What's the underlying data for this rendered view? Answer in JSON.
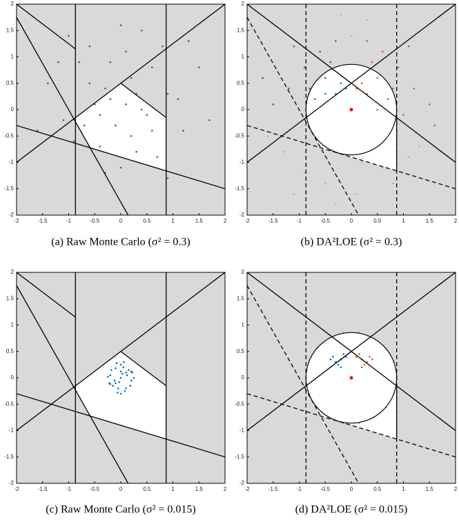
{
  "chart_data": [
    {
      "type": "scatter",
      "caption": "(a) Raw Monte Carlo (σ² = 0.3)",
      "xlim": [
        -2,
        2
      ],
      "ylim": [
        -2,
        2
      ],
      "xticks": [
        -2,
        -1.5,
        -1,
        -0.5,
        0,
        0.5,
        1,
        1.5,
        2
      ],
      "yticks": [
        -2,
        -1.5,
        -1,
        -0.5,
        0,
        0.5,
        1,
        1.5,
        2
      ],
      "region": {
        "x": [
          0,
          0.87,
          0.87,
          -0.59,
          -0.87,
          -0.87
        ],
        "y": [
          0.5,
          -0.15,
          -1.16,
          -0.72,
          -0.23,
          -0.15
        ]
      },
      "lines": [
        {
          "style": "solid",
          "x": [
            -0.87,
            -0.87
          ],
          "y": [
            -2,
            2
          ]
        },
        {
          "style": "solid",
          "x": [
            0.87,
            0.87
          ],
          "y": [
            -2,
            2
          ]
        },
        {
          "style": "solid",
          "x": [
            -2,
            2
          ],
          "y": [
            -1,
            2
          ]
        },
        {
          "style": "solid",
          "x": [
            -2,
            -0.87
          ],
          "y": [
            2,
            1.15
          ]
        },
        {
          "style": "solid",
          "x": [
            0,
            0.87
          ],
          "y": [
            0.5,
            -0.15
          ]
        },
        {
          "style": "solid",
          "x": [
            -2,
            0.14
          ],
          "y": [
            1.75,
            -2
          ]
        },
        {
          "style": "solid",
          "x": [
            -2,
            2
          ],
          "y": [
            -0.3,
            -1.5
          ]
        }
      ],
      "series": [
        {
          "color": "#0072bd",
          "x": [
            -0.8,
            -0.3,
            0.2,
            0.6,
            -1.1,
            0.1,
            -0.4,
            0.9,
            -0.6,
            0.4,
            1.2,
            -1.4,
            0.0,
            0.7,
            -0.2,
            0.3,
            -0.9,
            1.5,
            -0.5,
            0.5,
            0.1,
            -1.0,
            0.8,
            -0.1,
            0.3,
            -0.7,
            1.1,
            -1.6,
            0.2,
            -0.3,
            0.6,
            -0.2,
            1.3,
            -1.2,
            0.4,
            -0.6,
            0.0,
            0.9,
            -0.4,
            1.7
          ],
          "y": [
            0.9,
            0.4,
            -0.5,
            0.8,
            -0.2,
            0.1,
            -0.7,
            0.3,
            1.2,
            1.5,
            -0.4,
            0.5,
            -1.1,
            -0.9,
            0.9,
            0.3,
            -0.6,
            0.8,
            0.1,
            -0.1,
            1.1,
            1.4,
            1.2,
            -0.3,
            -0.8,
            -0.3,
            0.2,
            -0.4,
            0.6,
            -1.2,
            -0.4,
            0.2,
            1.3,
            0.9,
            0.0,
            0.5,
            1.6,
            -1.3,
            -0.1,
            -0.2
          ]
        }
      ]
    },
    {
      "type": "scatter",
      "caption": "(b) DA²LOE   (σ² = 0.3)",
      "xlim": [
        -2,
        2
      ],
      "ylim": [
        -2,
        2
      ],
      "xticks": [
        -2,
        -1.5,
        -1,
        -0.5,
        0,
        0.5,
        1,
        1.5,
        2
      ],
      "yticks": [
        -2,
        -1.5,
        -1,
        -0.5,
        0,
        0.5,
        1,
        1.5,
        2
      ],
      "region": {
        "x": [
          0,
          0.87,
          0.87,
          -0.59,
          -0.87,
          -0.87
        ],
        "y": [
          0.5,
          -0.15,
          -1.16,
          -0.72,
          -0.23,
          -0.15
        ]
      },
      "circle": {
        "cx": 0,
        "cy": 0,
        "r": 0.87
      },
      "lines": [
        {
          "style": "dashed",
          "x": [
            -0.87,
            -0.87
          ],
          "y": [
            -2,
            2
          ]
        },
        {
          "style": "dashed",
          "x": [
            0.87,
            0.87
          ],
          "y": [
            -2,
            2
          ]
        },
        {
          "style": "solid",
          "x": [
            0.87,
            0.87
          ],
          "y": [
            -0.15,
            -1.16
          ]
        },
        {
          "style": "solid",
          "x": [
            -2,
            2
          ],
          "y": [
            -1,
            2
          ]
        },
        {
          "style": "solid",
          "x": [
            -2,
            2
          ],
          "y": [
            2,
            -1
          ]
        },
        {
          "style": "dashed",
          "x": [
            -2,
            0.14
          ],
          "y": [
            1.75,
            -2
          ]
        },
        {
          "style": "dashed",
          "x": [
            -2,
            2
          ],
          "y": [
            -0.3,
            -1.5
          ]
        }
      ],
      "series": [
        {
          "color": "#0072bd",
          "x": [
            -0.3,
            -0.5,
            -0.7,
            -0.2,
            -0.9,
            -1.2,
            -0.6,
            -0.4,
            -1.5,
            -0.8,
            -0.1,
            -1.1,
            -0.5,
            -0.3,
            -1.7
          ],
          "y": [
            0.3,
            0.6,
            0.2,
            0.5,
            0.8,
            0.4,
            1.1,
            0.9,
            0.1,
            0.4,
            0.4,
            1.2,
            0.3,
            1.3,
            0.6
          ]
        },
        {
          "color": "#d95319",
          "x": [
            0.3,
            0.5,
            0.7,
            0.2,
            0.9,
            1.2,
            0.6,
            0.4,
            1.5,
            0.8,
            0.1,
            1.1,
            0.5,
            0.3,
            1.6,
            1.0
          ],
          "y": [
            0.3,
            0.6,
            0.2,
            0.5,
            0.8,
            0.4,
            1.1,
            0.9,
            0.1,
            0.4,
            0.4,
            1.2,
            0.0,
            1.3,
            -0.3,
            -0.1
          ]
        },
        {
          "color": "#edb120",
          "x": [
            0.0,
            -0.2,
            0.3,
            -1.3,
            -0.9,
            -0.5,
            0.2,
            0.6,
            1.1,
            -1.6,
            0.1,
            -0.3,
            1.3,
            -1.1,
            0.8
          ],
          "y": [
            1.4,
            1.8,
            1.7,
            -0.8,
            -1.2,
            -1.4,
            -1.0,
            -1.1,
            -0.9,
            -0.5,
            -1.6,
            -1.8,
            -0.7,
            -1.6,
            -1.4
          ]
        }
      ],
      "center": {
        "x": 0,
        "y": 0,
        "color": "#ff0000"
      }
    },
    {
      "type": "scatter",
      "caption": "(c) Raw Monte Carlo (σ² = 0.015)",
      "xlim": [
        -2,
        2
      ],
      "ylim": [
        -2,
        2
      ],
      "xticks": [
        -2,
        -1.5,
        -1,
        -0.5,
        0,
        0.5,
        1,
        1.5,
        2
      ],
      "yticks": [
        -2,
        -1.5,
        -1,
        -0.5,
        0,
        0.5,
        1,
        1.5,
        2
      ],
      "region": {
        "x": [
          0,
          0.87,
          0.87,
          -0.59,
          -0.87,
          -0.87
        ],
        "y": [
          0.5,
          -0.15,
          -1.16,
          -0.72,
          -0.23,
          -0.15
        ]
      },
      "lines": [
        {
          "style": "solid",
          "x": [
            -0.87,
            -0.87
          ],
          "y": [
            -2,
            2
          ]
        },
        {
          "style": "solid",
          "x": [
            0.87,
            0.87
          ],
          "y": [
            -2,
            2
          ]
        },
        {
          "style": "solid",
          "x": [
            -2,
            2
          ],
          "y": [
            -1,
            2
          ]
        },
        {
          "style": "solid",
          "x": [
            -2,
            -0.87
          ],
          "y": [
            2,
            1.15
          ]
        },
        {
          "style": "solid",
          "x": [
            0,
            0.87
          ],
          "y": [
            0.5,
            -0.15
          ]
        },
        {
          "style": "solid",
          "x": [
            -2,
            0.14
          ],
          "y": [
            1.75,
            -2
          ]
        },
        {
          "style": "solid",
          "x": [
            -2,
            2
          ],
          "y": [
            -0.3,
            -1.5
          ]
        }
      ],
      "series": [
        {
          "color": "#0072bd",
          "x": [
            0.0,
            0.1,
            -0.1,
            0.2,
            -0.2,
            0.05,
            -0.05,
            0.15,
            -0.15,
            0.25,
            -0.25,
            0.0,
            0.1,
            -0.1,
            0.2,
            -0.2,
            0.08,
            -0.08,
            0.12,
            -0.12,
            0.0,
            0.18,
            -0.18,
            0.03,
            -0.03,
            0.22,
            -0.22,
            0.06,
            -0.06,
            0.0
          ],
          "y": [
            0.0,
            0.1,
            -0.1,
            -0.05,
            0.05,
            0.2,
            -0.2,
            0.15,
            -0.15,
            0.0,
            0.02,
            0.25,
            -0.2,
            0.18,
            0.12,
            -0.12,
            -0.25,
            0.28,
            0.05,
            -0.05,
            -0.3,
            -0.15,
            0.15,
            0.08,
            -0.08,
            0.1,
            -0.1,
            0.3,
            -0.28,
            0.12
          ]
        }
      ]
    },
    {
      "type": "scatter",
      "caption": "(d) DA²LOE   (σ² = 0.015)",
      "xlim": [
        -2,
        2
      ],
      "ylim": [
        -2,
        2
      ],
      "xticks": [
        -2,
        -1.5,
        -1,
        -0.5,
        0,
        0.5,
        1,
        1.5,
        2
      ],
      "yticks": [
        -2,
        -1.5,
        -1,
        -0.5,
        0,
        0.5,
        1,
        1.5,
        2
      ],
      "region": {
        "x": [
          0,
          0.87,
          0.87,
          -0.59,
          -0.87,
          -0.87
        ],
        "y": [
          0.5,
          -0.15,
          -1.16,
          -0.72,
          -0.23,
          -0.15
        ]
      },
      "circle": {
        "cx": 0,
        "cy": 0,
        "r": 0.87
      },
      "lines": [
        {
          "style": "dashed",
          "x": [
            -0.87,
            -0.87
          ],
          "y": [
            -2,
            2
          ]
        },
        {
          "style": "dashed",
          "x": [
            0.87,
            0.87
          ],
          "y": [
            -2,
            2
          ]
        },
        {
          "style": "solid",
          "x": [
            0.87,
            0.87
          ],
          "y": [
            -0.15,
            -1.16
          ]
        },
        {
          "style": "solid",
          "x": [
            -2,
            2
          ],
          "y": [
            -1,
            2
          ]
        },
        {
          "style": "solid",
          "x": [
            -2,
            2
          ],
          "y": [
            2,
            -1
          ]
        },
        {
          "style": "dashed",
          "x": [
            -2,
            0.14
          ],
          "y": [
            1.75,
            -2
          ]
        },
        {
          "style": "dashed",
          "x": [
            -2,
            2
          ],
          "y": [
            -0.3,
            -1.5
          ]
        }
      ],
      "series": [
        {
          "color": "#0072bd",
          "x": [
            -0.1,
            -0.2,
            -0.3,
            -0.35,
            -0.15,
            -0.25,
            -0.4,
            -0.2
          ],
          "y": [
            0.4,
            0.35,
            0.3,
            0.4,
            0.45,
            0.25,
            0.35,
            0.2
          ]
        },
        {
          "color": "#d95319",
          "x": [
            0.1,
            0.2,
            0.3,
            0.35,
            0.15,
            0.25,
            0.4,
            0.2
          ],
          "y": [
            0.4,
            0.35,
            0.3,
            0.4,
            0.45,
            0.25,
            0.35,
            0.2
          ]
        },
        {
          "color": "#edb120",
          "x": [
            0.87,
            0.82,
            0.67,
            0.44,
            0.15,
            -0.15,
            -0.44,
            -0.67,
            -0.82,
            -0.87,
            -0.82,
            -0.67,
            -0.44,
            -0.15,
            0.15,
            0.44,
            0.67,
            0.82
          ],
          "y": [
            0,
            0.3,
            0.56,
            0.75,
            0.86,
            0.86,
            0.75,
            0.56,
            0.3,
            0,
            -0.3,
            -0.56,
            -0.75,
            -0.86,
            -0.86,
            -0.75,
            -0.56,
            -0.3
          ]
        }
      ],
      "center": {
        "x": 0,
        "y": 0,
        "color": "#ff0000"
      }
    }
  ]
}
